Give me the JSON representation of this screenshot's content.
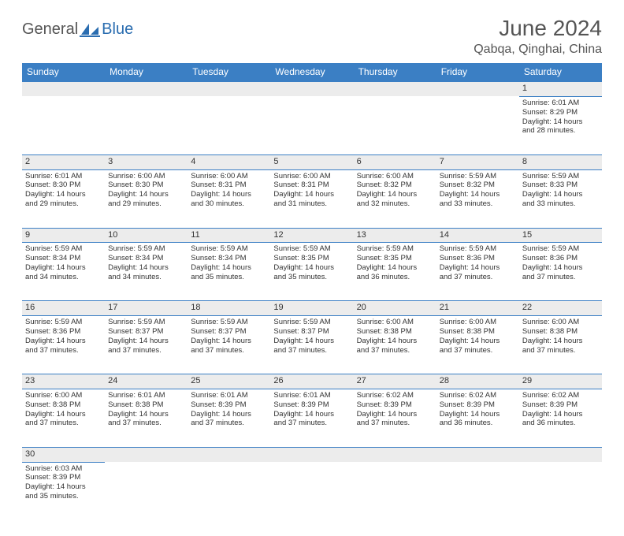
{
  "logo": {
    "text1": "General",
    "text2": "Blue"
  },
  "title": "June 2024",
  "location": "Qabqa, Qinghai, China",
  "colors": {
    "header_bg": "#3b7fc4",
    "header_text": "#ffffff",
    "daynum_bg": "#ececec",
    "border": "#3b7fc4",
    "text": "#333333",
    "title_text": "#555555",
    "logo_blue": "#2a6db0"
  },
  "day_headers": [
    "Sunday",
    "Monday",
    "Tuesday",
    "Wednesday",
    "Thursday",
    "Friday",
    "Saturday"
  ],
  "weeks": [
    {
      "nums": [
        "",
        "",
        "",
        "",
        "",
        "",
        "1"
      ],
      "cells": [
        null,
        null,
        null,
        null,
        null,
        null,
        {
          "sunrise": "Sunrise: 6:01 AM",
          "sunset": "Sunset: 8:29 PM",
          "day1": "Daylight: 14 hours",
          "day2": "and 28 minutes."
        }
      ]
    },
    {
      "nums": [
        "2",
        "3",
        "4",
        "5",
        "6",
        "7",
        "8"
      ],
      "cells": [
        {
          "sunrise": "Sunrise: 6:01 AM",
          "sunset": "Sunset: 8:30 PM",
          "day1": "Daylight: 14 hours",
          "day2": "and 29 minutes."
        },
        {
          "sunrise": "Sunrise: 6:00 AM",
          "sunset": "Sunset: 8:30 PM",
          "day1": "Daylight: 14 hours",
          "day2": "and 29 minutes."
        },
        {
          "sunrise": "Sunrise: 6:00 AM",
          "sunset": "Sunset: 8:31 PM",
          "day1": "Daylight: 14 hours",
          "day2": "and 30 minutes."
        },
        {
          "sunrise": "Sunrise: 6:00 AM",
          "sunset": "Sunset: 8:31 PM",
          "day1": "Daylight: 14 hours",
          "day2": "and 31 minutes."
        },
        {
          "sunrise": "Sunrise: 6:00 AM",
          "sunset": "Sunset: 8:32 PM",
          "day1": "Daylight: 14 hours",
          "day2": "and 32 minutes."
        },
        {
          "sunrise": "Sunrise: 5:59 AM",
          "sunset": "Sunset: 8:32 PM",
          "day1": "Daylight: 14 hours",
          "day2": "and 33 minutes."
        },
        {
          "sunrise": "Sunrise: 5:59 AM",
          "sunset": "Sunset: 8:33 PM",
          "day1": "Daylight: 14 hours",
          "day2": "and 33 minutes."
        }
      ]
    },
    {
      "nums": [
        "9",
        "10",
        "11",
        "12",
        "13",
        "14",
        "15"
      ],
      "cells": [
        {
          "sunrise": "Sunrise: 5:59 AM",
          "sunset": "Sunset: 8:34 PM",
          "day1": "Daylight: 14 hours",
          "day2": "and 34 minutes."
        },
        {
          "sunrise": "Sunrise: 5:59 AM",
          "sunset": "Sunset: 8:34 PM",
          "day1": "Daylight: 14 hours",
          "day2": "and 34 minutes."
        },
        {
          "sunrise": "Sunrise: 5:59 AM",
          "sunset": "Sunset: 8:34 PM",
          "day1": "Daylight: 14 hours",
          "day2": "and 35 minutes."
        },
        {
          "sunrise": "Sunrise: 5:59 AM",
          "sunset": "Sunset: 8:35 PM",
          "day1": "Daylight: 14 hours",
          "day2": "and 35 minutes."
        },
        {
          "sunrise": "Sunrise: 5:59 AM",
          "sunset": "Sunset: 8:35 PM",
          "day1": "Daylight: 14 hours",
          "day2": "and 36 minutes."
        },
        {
          "sunrise": "Sunrise: 5:59 AM",
          "sunset": "Sunset: 8:36 PM",
          "day1": "Daylight: 14 hours",
          "day2": "and 37 minutes."
        },
        {
          "sunrise": "Sunrise: 5:59 AM",
          "sunset": "Sunset: 8:36 PM",
          "day1": "Daylight: 14 hours",
          "day2": "and 37 minutes."
        }
      ]
    },
    {
      "nums": [
        "16",
        "17",
        "18",
        "19",
        "20",
        "21",
        "22"
      ],
      "cells": [
        {
          "sunrise": "Sunrise: 5:59 AM",
          "sunset": "Sunset: 8:36 PM",
          "day1": "Daylight: 14 hours",
          "day2": "and 37 minutes."
        },
        {
          "sunrise": "Sunrise: 5:59 AM",
          "sunset": "Sunset: 8:37 PM",
          "day1": "Daylight: 14 hours",
          "day2": "and 37 minutes."
        },
        {
          "sunrise": "Sunrise: 5:59 AM",
          "sunset": "Sunset: 8:37 PM",
          "day1": "Daylight: 14 hours",
          "day2": "and 37 minutes."
        },
        {
          "sunrise": "Sunrise: 5:59 AM",
          "sunset": "Sunset: 8:37 PM",
          "day1": "Daylight: 14 hours",
          "day2": "and 37 minutes."
        },
        {
          "sunrise": "Sunrise: 6:00 AM",
          "sunset": "Sunset: 8:38 PM",
          "day1": "Daylight: 14 hours",
          "day2": "and 37 minutes."
        },
        {
          "sunrise": "Sunrise: 6:00 AM",
          "sunset": "Sunset: 8:38 PM",
          "day1": "Daylight: 14 hours",
          "day2": "and 37 minutes."
        },
        {
          "sunrise": "Sunrise: 6:00 AM",
          "sunset": "Sunset: 8:38 PM",
          "day1": "Daylight: 14 hours",
          "day2": "and 37 minutes."
        }
      ]
    },
    {
      "nums": [
        "23",
        "24",
        "25",
        "26",
        "27",
        "28",
        "29"
      ],
      "cells": [
        {
          "sunrise": "Sunrise: 6:00 AM",
          "sunset": "Sunset: 8:38 PM",
          "day1": "Daylight: 14 hours",
          "day2": "and 37 minutes."
        },
        {
          "sunrise": "Sunrise: 6:01 AM",
          "sunset": "Sunset: 8:38 PM",
          "day1": "Daylight: 14 hours",
          "day2": "and 37 minutes."
        },
        {
          "sunrise": "Sunrise: 6:01 AM",
          "sunset": "Sunset: 8:39 PM",
          "day1": "Daylight: 14 hours",
          "day2": "and 37 minutes."
        },
        {
          "sunrise": "Sunrise: 6:01 AM",
          "sunset": "Sunset: 8:39 PM",
          "day1": "Daylight: 14 hours",
          "day2": "and 37 minutes."
        },
        {
          "sunrise": "Sunrise: 6:02 AM",
          "sunset": "Sunset: 8:39 PM",
          "day1": "Daylight: 14 hours",
          "day2": "and 37 minutes."
        },
        {
          "sunrise": "Sunrise: 6:02 AM",
          "sunset": "Sunset: 8:39 PM",
          "day1": "Daylight: 14 hours",
          "day2": "and 36 minutes."
        },
        {
          "sunrise": "Sunrise: 6:02 AM",
          "sunset": "Sunset: 8:39 PM",
          "day1": "Daylight: 14 hours",
          "day2": "and 36 minutes."
        }
      ]
    },
    {
      "nums": [
        "30",
        "",
        "",
        "",
        "",
        "",
        ""
      ],
      "cells": [
        {
          "sunrise": "Sunrise: 6:03 AM",
          "sunset": "Sunset: 8:39 PM",
          "day1": "Daylight: 14 hours",
          "day2": "and 35 minutes."
        },
        null,
        null,
        null,
        null,
        null,
        null
      ]
    }
  ]
}
